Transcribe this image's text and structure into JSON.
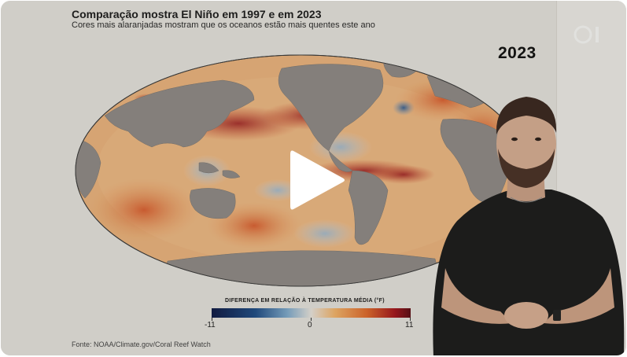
{
  "video": {
    "title": "Comparação mostra El Niño em 1997 e em 2023",
    "subtitle": "Cores mais alaranjadas mostram que os oceanos estão mais quentes este ano",
    "year_label": "2023",
    "source": "Fonte: NOAA/Climate.gov/Coral Reef Watch"
  },
  "legend": {
    "title": "DIFERENÇA EM RELAÇÃO À TEMPERATURA MÉDIA (°F)",
    "min": "-11",
    "mid": "0",
    "max": "11"
  },
  "icons": {
    "play": "play-icon",
    "watermark": "broadcaster-logo"
  },
  "colors": {
    "cold": "#1f4d86",
    "neutral": "#e8e3dc",
    "warm": "#de6a2c",
    "hot": "#a4161d",
    "land": "#8f8a86"
  }
}
